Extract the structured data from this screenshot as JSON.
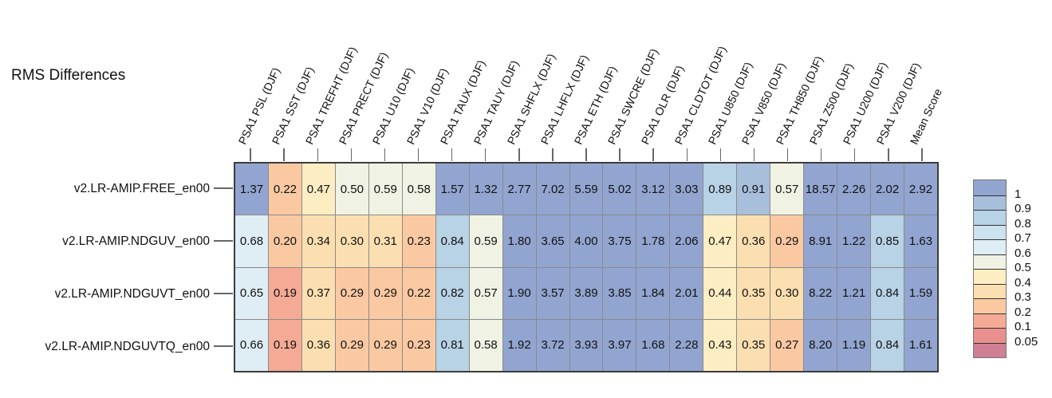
{
  "title": "RMS Differences",
  "chart_data": {
    "type": "heatmap",
    "title": "RMS Differences",
    "season": "DJF",
    "columns": [
      "PSA1 PSL (DJF)",
      "PSA1 SST (DJF)",
      "PSA1 TREFHT (DJF)",
      "PSA1 PRECT (DJF)",
      "PSA1 U10 (DJF)",
      "PSA1 V10 (DJF)",
      "PSA1 TAUX (DJF)",
      "PSA1 TAUY (DJF)",
      "PSA1 SHFLX (DJF)",
      "PSA1 LHFLX (DJF)",
      "PSA1 ETH (DJF)",
      "PSA1 SWCRE (DJF)",
      "PSA1 OLR (DJF)",
      "PSA1 CLDTOT (DJF)",
      "PSA1 U850 (DJF)",
      "PSA1 V850 (DJF)",
      "PSA1 TH850 (DJF)",
      "PSA1 Z500 (DJF)",
      "PSA1 U200 (DJF)",
      "PSA1 V200 (DJF)",
      "Mean Score"
    ],
    "rows": [
      "v2.LR-AMIP.FREE_en00",
      "v2.LR-AMIP.NDGUV_en00",
      "v2.LR-AMIP.NDGUVT_en00",
      "v2.LR-AMIP.NDGUVTQ_en00"
    ],
    "values": [
      [
        "1.37",
        "0.22",
        "0.47",
        "0.50",
        "0.59",
        "0.58",
        "1.57",
        "1.32",
        "2.77",
        "7.02",
        "5.59",
        "5.02",
        "3.12",
        "3.03",
        "0.89",
        "0.91",
        "0.57",
        "18.57",
        "2.26",
        "2.02",
        "2.92"
      ],
      [
        "0.68",
        "0.20",
        "0.34",
        "0.30",
        "0.31",
        "0.23",
        "0.84",
        "0.59",
        "1.80",
        "3.65",
        "4.00",
        "3.75",
        "1.78",
        "2.06",
        "0.47",
        "0.36",
        "0.29",
        "8.91",
        "1.22",
        "0.85",
        "1.63"
      ],
      [
        "0.65",
        "0.19",
        "0.37",
        "0.29",
        "0.29",
        "0.22",
        "0.82",
        "0.57",
        "1.90",
        "3.57",
        "3.89",
        "3.85",
        "1.84",
        "2.01",
        "0.44",
        "0.35",
        "0.30",
        "8.22",
        "1.21",
        "0.84",
        "1.59"
      ],
      [
        "0.66",
        "0.19",
        "0.36",
        "0.29",
        "0.29",
        "0.23",
        "0.81",
        "0.58",
        "1.92",
        "3.72",
        "3.93",
        "3.97",
        "1.68",
        "2.28",
        "0.43",
        "0.35",
        "0.27",
        "8.20",
        "1.19",
        "0.84",
        "1.61"
      ]
    ],
    "color_scale": {
      "description": "score bands, value >= threshold picks band color; below last threshold uses final color",
      "thresholds": [
        1,
        0.9,
        0.8,
        0.7,
        0.6,
        0.5,
        0.4,
        0.3,
        0.2,
        0.1,
        0.05
      ],
      "legend_labels": [
        "1",
        "0.9",
        "0.8",
        "0.7",
        "0.6",
        "0.5",
        "0.4",
        "0.3",
        "0.2",
        "0.1",
        "0.05"
      ],
      "colors": [
        "#92a5d0",
        "#a8bfdc",
        "#b8d2e6",
        "#cce2ee",
        "#dfedf4",
        "#f0f2e3",
        "#fdedc3",
        "#fcdfb0",
        "#fac9a2",
        "#f5aa96",
        "#e98f8e",
        "#ce7f93"
      ],
      "legend_position": "right"
    },
    "grid": true,
    "value_text_color": "#111111"
  }
}
